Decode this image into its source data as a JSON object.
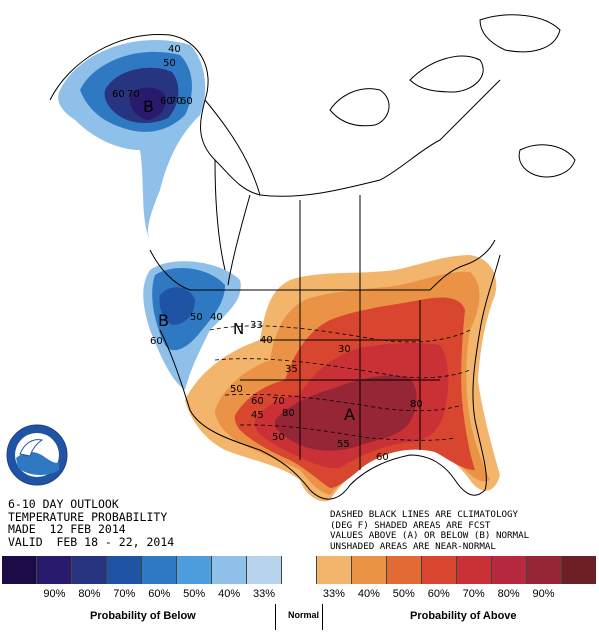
{
  "map_labels": {
    "alaska_center": "B",
    "alaska_contours": [
      "40",
      "50",
      "60",
      "70",
      "60",
      "70",
      "60"
    ],
    "northwest_center": "B",
    "northwest_contours": [
      "50",
      "40",
      "60"
    ],
    "normal_center": "N",
    "normal_contours": [
      "33",
      "40"
    ],
    "southeast_center": "A",
    "southeast_contours": [
      "50",
      "60",
      "70",
      "80",
      "45",
      "50",
      "55",
      "60",
      "80",
      "35",
      "30"
    ]
  },
  "outlook": {
    "line1": "6-10 DAY OUTLOOK",
    "line2": "TEMPERATURE PROBABILITY",
    "line3": "MADE  12 FEB 2014",
    "line4": "VALID  FEB 18 - 22, 2014"
  },
  "legend_note": {
    "line1": "DASHED BLACK LINES ARE CLIMATOLOGY",
    "line2": "(DEG F) SHADED AREAS ARE FCST",
    "line3": "VALUES ABOVE (A) OR BELOW (B) NORMAL",
    "line4": "UNSHADED AREAS ARE NEAR-NORMAL"
  },
  "legend": {
    "swatch_colors": [
      "#1c0b46",
      "#2a1a6e",
      "#27347f",
      "#1f53a3",
      "#2f78c2",
      "#4d9edf",
      "#8ec0e9",
      "#b8d3ee",
      "#ffffff",
      "#f2b56b",
      "#ea9347",
      "#e26a34",
      "#d84630",
      "#c93137",
      "#b6293f",
      "#962535",
      "#6c1f24"
    ],
    "labels": [
      "90%",
      "80%",
      "70%",
      "60%",
      "50%",
      "40%",
      "33%",
      "33%",
      "40%",
      "50%",
      "60%",
      "70%",
      "80%",
      "90%"
    ],
    "below_title": "Probability of Below",
    "normal_title": "Normal",
    "above_title": "Probability of Above"
  },
  "colors": {
    "below_dark": "#2a1a6e",
    "below_mid": "#2f78c2",
    "below_light": "#8ec0e9",
    "above_light": "#f2b56b",
    "above_mid": "#e26a34",
    "above_high": "#d84630",
    "above_peak": "#962535"
  }
}
